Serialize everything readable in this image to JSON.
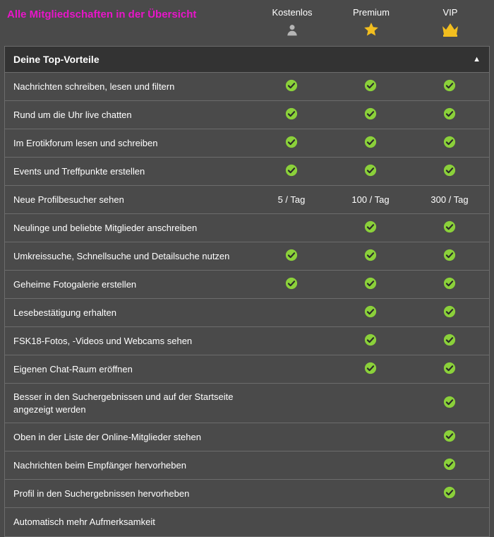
{
  "colors": {
    "title": "#e815c9",
    "check_fill": "#8bd13a",
    "check_mark": "#2a2a2a",
    "star": "#f2be1f",
    "crown": "#f2be1f",
    "person": "#b5b5b5",
    "text": "#ffffff"
  },
  "title": "Alle Mitgliedschaften in der Übersicht",
  "tiers": [
    {
      "label": "Kostenlos",
      "icon": "person"
    },
    {
      "label": "Premium",
      "icon": "star"
    },
    {
      "label": "VIP",
      "icon": "crown"
    }
  ],
  "section_header": "Deine Top-Vorteile",
  "rows": [
    {
      "feature": "Nachrichten schreiben, lesen und filtern",
      "cells": [
        "check",
        "check",
        "check"
      ]
    },
    {
      "feature": "Rund um die Uhr live chatten",
      "cells": [
        "check",
        "check",
        "check"
      ]
    },
    {
      "feature": "Im Erotikforum lesen und schreiben",
      "cells": [
        "check",
        "check",
        "check"
      ]
    },
    {
      "feature": "Events und Treffpunkte erstellen",
      "cells": [
        "check",
        "check",
        "check"
      ]
    },
    {
      "feature": "Neue Profilbesucher sehen",
      "cells": [
        "5 / Tag",
        "100 / Tag",
        "300 / Tag"
      ]
    },
    {
      "feature": "Neulinge und beliebte Mitglieder anschreiben",
      "cells": [
        "",
        "check",
        "check"
      ]
    },
    {
      "feature": "Umkreissuche, Schnellsuche und Detailsuche nutzen",
      "cells": [
        "check",
        "check",
        "check"
      ]
    },
    {
      "feature": "Geheime Fotogalerie erstellen",
      "cells": [
        "check",
        "check",
        "check"
      ]
    },
    {
      "feature": "Lesebestätigung erhalten",
      "cells": [
        "",
        "check",
        "check"
      ]
    },
    {
      "feature": "FSK18-Fotos, -Videos und Webcams sehen",
      "cells": [
        "",
        "check",
        "check"
      ]
    },
    {
      "feature": "Eigenen Chat-Raum eröffnen",
      "cells": [
        "",
        "check",
        "check"
      ]
    },
    {
      "feature": "Besser in den Suchergebnissen und auf der Startseite angezeigt werden",
      "cells": [
        "",
        "",
        "check"
      ]
    },
    {
      "feature": "Oben in der Liste der Online-Mitglieder stehen",
      "cells": [
        "",
        "",
        "check"
      ]
    },
    {
      "feature": "Nachrichten beim Empfänger hervorheben",
      "cells": [
        "",
        "",
        "check"
      ]
    },
    {
      "feature": "Profil in den Suchergebnissen hervorheben",
      "cells": [
        "",
        "",
        "check"
      ]
    },
    {
      "feature": "Automatisch mehr Aufmerksamkeit",
      "cells": [
        "",
        "",
        ""
      ]
    }
  ]
}
